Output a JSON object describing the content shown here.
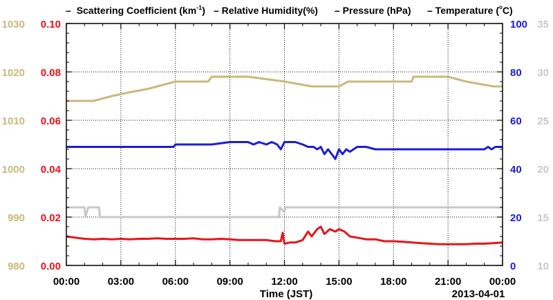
{
  "colors": {
    "scattering": "#e8141b",
    "humidity": "#1b1bd9",
    "pressure": "#c9b97a",
    "temperature": "#c8c8c8",
    "axis": "#000000",
    "grid": "#000000"
  },
  "legend": {
    "scattering_dash": "–",
    "scattering_prefix": "Scattering Coefficient (km",
    "scattering_sup": "-1",
    "scattering_suffix": ")",
    "humidity": "– Relative Humidity(%)",
    "pressure": "– Pressure (hPa)",
    "temperature": "– Temperature (",
    "temperature_unit": "C)"
  },
  "x_axis": {
    "title": "Time (JST)",
    "date_label": "2013-04-01",
    "tick_labels": [
      "00:00",
      "03:00",
      "06:00",
      "09:00",
      "12:00",
      "15:00",
      "18:00",
      "21:00",
      "00:00"
    ]
  },
  "left_outer_axis": {
    "tick_labels": [
      "980",
      "990",
      "1000",
      "1010",
      "1020",
      "1030"
    ]
  },
  "left_inner_axis": {
    "tick_labels": [
      "0.00",
      "0.02",
      "0.04",
      "0.06",
      "0.08",
      "0.10"
    ]
  },
  "right_inner_axis": {
    "tick_labels": [
      "0",
      "20",
      "40",
      "60",
      "80",
      "100"
    ]
  },
  "right_outer_axis": {
    "tick_labels": [
      "10",
      "15",
      "20",
      "25",
      "30",
      "35"
    ]
  },
  "chart_data": {
    "type": "line",
    "x_unit": "hours (JST)",
    "xlim": [
      0,
      24
    ],
    "grid": true,
    "legend_placement": "top",
    "series": [
      {
        "name": "Scattering Coefficient (km-1)",
        "axis": "left-inner",
        "ylim": [
          0,
          0.1
        ],
        "x": [
          0,
          0.5,
          1,
          1.5,
          2,
          2.5,
          3,
          3.5,
          4,
          4.5,
          5,
          5.5,
          6,
          6.5,
          7,
          7.5,
          8,
          8.5,
          9,
          9.5,
          10,
          10.5,
          11,
          11.5,
          11.8,
          11.9,
          12,
          12.3,
          12.6,
          13,
          13.3,
          13.5,
          13.8,
          14,
          14.2,
          14.5,
          14.8,
          15,
          15.3,
          15.6,
          16,
          16.5,
          17,
          17.5,
          18,
          18.5,
          19,
          19.5,
          20,
          20.5,
          21,
          21.5,
          22,
          22.5,
          23,
          23.5,
          24
        ],
        "y": [
          0.012,
          0.0115,
          0.011,
          0.0108,
          0.011,
          0.0108,
          0.011,
          0.0108,
          0.011,
          0.011,
          0.0112,
          0.011,
          0.011,
          0.011,
          0.0112,
          0.0108,
          0.0108,
          0.011,
          0.0108,
          0.0105,
          0.0105,
          0.0105,
          0.0105,
          0.01,
          0.01,
          0.0135,
          0.009,
          0.0095,
          0.0095,
          0.0105,
          0.014,
          0.012,
          0.015,
          0.016,
          0.013,
          0.015,
          0.014,
          0.015,
          0.014,
          0.012,
          0.0115,
          0.0108,
          0.0108,
          0.01,
          0.01,
          0.0098,
          0.0095,
          0.0092,
          0.009,
          0.0088,
          0.0088,
          0.0088,
          0.0088,
          0.009,
          0.009,
          0.0092,
          0.0095
        ]
      },
      {
        "name": "Relative Humidity(%)",
        "axis": "right-inner",
        "ylim": [
          0,
          100
        ],
        "x": [
          0,
          2,
          4,
          5.9,
          6,
          8,
          9,
          10,
          10.3,
          10.6,
          11,
          11.3,
          11.6,
          11.8,
          12,
          12.3,
          12.6,
          13,
          13.3,
          13.6,
          13.8,
          14,
          14.2,
          14.4,
          14.6,
          14.8,
          15,
          15.2,
          15.4,
          15.6,
          16,
          16.5,
          17,
          17.5,
          18,
          19,
          20,
          21,
          22,
          23,
          23.2,
          23.4,
          23.6,
          24
        ],
        "y": [
          49,
          49,
          49,
          49,
          50,
          50,
          51,
          51,
          50,
          51,
          50,
          51,
          50,
          48,
          51,
          51,
          51,
          50,
          49,
          49,
          48,
          49,
          46,
          48,
          46,
          44,
          48,
          46,
          48,
          47,
          49,
          49,
          48,
          48,
          48,
          48,
          48,
          48,
          48,
          48,
          49,
          48,
          49,
          49
        ]
      },
      {
        "name": "Pressure (hPa)",
        "axis": "left-outer",
        "ylim": [
          980,
          1030
        ],
        "x": [
          0,
          1.5,
          2.5,
          3.5,
          4.5,
          5.2,
          6,
          7.8,
          8,
          10,
          12,
          13.5,
          15,
          15.5,
          17,
          18,
          19,
          19.1,
          20,
          21,
          22,
          23.5,
          24
        ],
        "y": [
          1014,
          1014,
          1015,
          1015.8,
          1016.5,
          1017.2,
          1018,
          1018,
          1019,
          1019,
          1018,
          1017,
          1017,
          1018,
          1018,
          1018,
          1018,
          1019,
          1019,
          1019,
          1018,
          1017,
          1017
        ]
      },
      {
        "name": "Temperature (C)",
        "axis": "right-outer",
        "ylim": [
          10,
          35
        ],
        "x": [
          0,
          1,
          1.05,
          1.2,
          1.8,
          1.85,
          2,
          6,
          9,
          11.7,
          11.75,
          12,
          12.05,
          15,
          18,
          21,
          24
        ],
        "y": [
          16,
          16,
          15,
          16,
          16,
          15,
          15,
          15,
          15,
          15,
          16,
          15.5,
          16,
          16,
          16,
          16,
          16
        ]
      }
    ]
  }
}
